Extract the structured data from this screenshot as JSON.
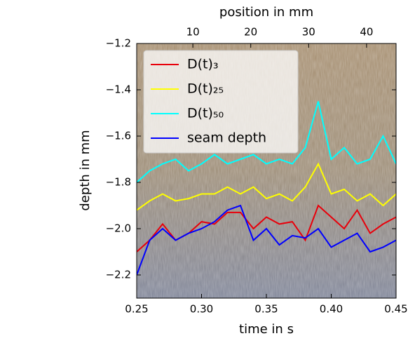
{
  "chart_data": {
    "type": "line",
    "x_label": "time in s",
    "y_label": "depth in mm",
    "x2_label": "position in mm",
    "x": [
      0.25,
      0.26,
      0.27,
      0.28,
      0.29,
      0.3,
      0.31,
      0.32,
      0.33,
      0.34,
      0.35,
      0.36,
      0.37,
      0.38,
      0.39,
      0.4,
      0.41,
      0.42,
      0.43,
      0.44,
      0.45
    ],
    "series": [
      {
        "name": "D(t)₃",
        "color": "#e8000b",
        "values": [
          -2.1,
          -2.05,
          -1.98,
          -2.05,
          -2.02,
          -1.97,
          -1.98,
          -1.93,
          -1.93,
          -2.0,
          -1.95,
          -1.98,
          -1.97,
          -2.05,
          -1.9,
          -1.95,
          -2.0,
          -1.92,
          -2.02,
          -1.98,
          -1.95
        ]
      },
      {
        "name": "D(t)₂₅",
        "color": "#ffff00",
        "values": [
          -1.92,
          -1.88,
          -1.85,
          -1.88,
          -1.87,
          -1.85,
          -1.85,
          -1.82,
          -1.85,
          -1.82,
          -1.87,
          -1.85,
          -1.88,
          -1.82,
          -1.72,
          -1.85,
          -1.83,
          -1.88,
          -1.85,
          -1.9,
          -1.85
        ]
      },
      {
        "name": "D(t)₅₀",
        "color": "#00ffff",
        "values": [
          -1.8,
          -1.75,
          -1.72,
          -1.7,
          -1.75,
          -1.72,
          -1.68,
          -1.72,
          -1.7,
          -1.68,
          -1.72,
          -1.7,
          -1.72,
          -1.65,
          -1.45,
          -1.7,
          -1.65,
          -1.72,
          -1.7,
          -1.6,
          -1.72
        ]
      },
      {
        "name": "seam depth",
        "color": "#0000ff",
        "values": [
          -2.2,
          -2.05,
          -2.0,
          -2.05,
          -2.02,
          -2.0,
          -1.97,
          -1.92,
          -1.9,
          -2.05,
          -2.0,
          -2.07,
          -2.03,
          -2.04,
          -2.0,
          -2.08,
          -2.05,
          -2.02,
          -2.1,
          -2.08,
          -2.05
        ]
      }
    ],
    "xlim": [
      0.25,
      0.45
    ],
    "xticks": [
      0.25,
      {
        "value": 0.3,
        "label": "0.30"
      },
      0.35,
      {
        "value": 0.4,
        "label": "0.40"
      },
      0.45
    ],
    "x2lim": [
      0.3,
      45.1
    ],
    "x2ticks": [
      10,
      20,
      30,
      40
    ],
    "ylim": [
      -2.3,
      -1.2
    ],
    "yticks": [
      {
        "value": -1.2,
        "label": "−1.2"
      },
      {
        "value": -1.4,
        "label": "−1.4"
      },
      {
        "value": -1.6,
        "label": "−1.6"
      },
      {
        "value": -1.8,
        "label": "−1.8"
      },
      {
        "value": -2.0,
        "label": "−2.0"
      },
      {
        "value": -2.2,
        "label": "−2.2"
      }
    ],
    "legend": "upper left"
  }
}
